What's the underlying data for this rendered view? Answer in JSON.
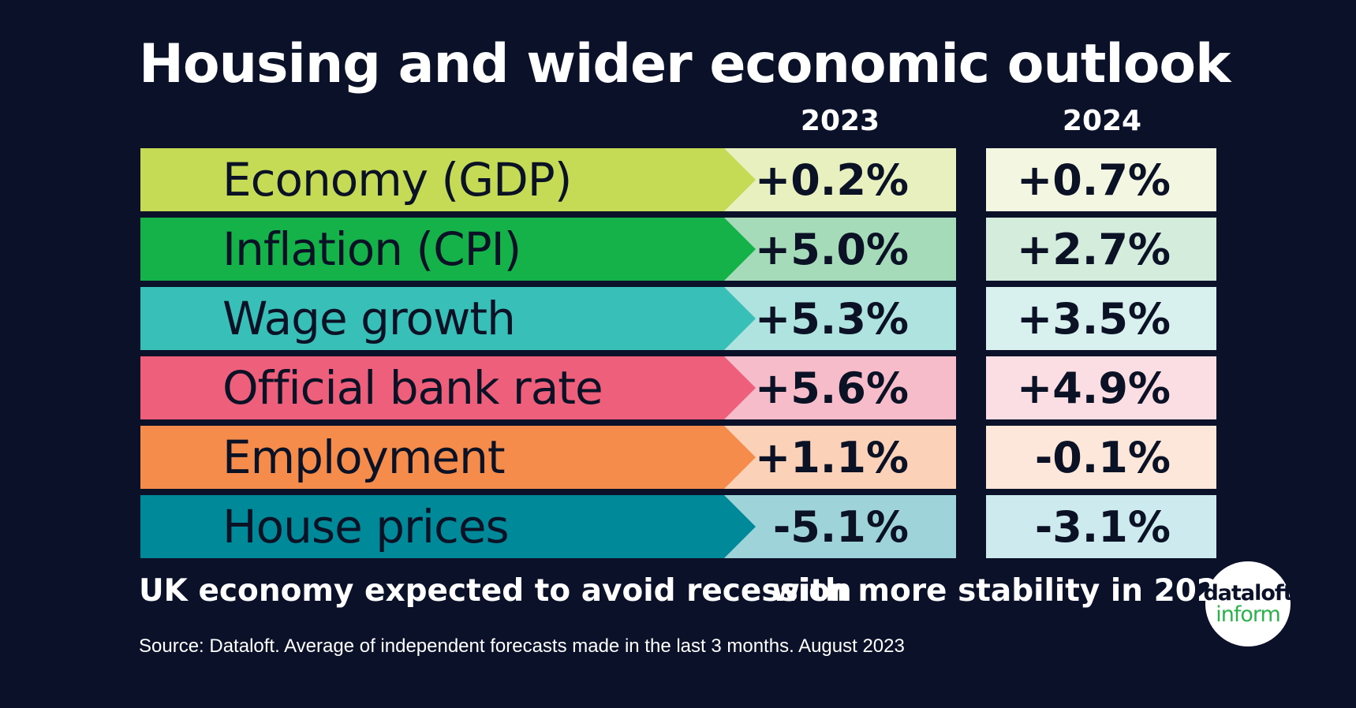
{
  "title": "Housing and wider economic outlook",
  "subtitle_left": "UK economy expected to avoid recession",
  "subtitle_right": "with more stability in 2024",
  "source": "Source: Dataloft. Average of independent forecasts made in the last 3 months. August 2023",
  "logo": {
    "line1": "dataloft",
    "line2": "inform"
  },
  "chart_data": {
    "type": "table",
    "columns": [
      "2023",
      "2024"
    ],
    "rows": [
      {
        "label": "Economy (GDP)",
        "values": [
          "+0.2%",
          "+0.7%"
        ],
        "color": "#c5db55",
        "cell23": "#e8f0c0",
        "cell24": "#f3f6e1"
      },
      {
        "label": "Inflation (CPI)",
        "values": [
          "+5.0%",
          "+2.7%"
        ],
        "color": "#15b24a",
        "cell23": "#a5dbb9",
        "cell24": "#d3ecdc"
      },
      {
        "label": "Wage growth",
        "values": [
          "+5.3%",
          "+3.5%"
        ],
        "color": "#38c0b8",
        "cell23": "#afe3e0",
        "cell24": "#d8f1ef"
      },
      {
        "label": "Official bank rate",
        "values": [
          "+5.6%",
          "+4.9%"
        ],
        "color": "#ee5f7b",
        "cell23": "#f7bcc9",
        "cell24": "#fbdde4"
      },
      {
        "label": "Employment",
        "values": [
          "+1.1%",
          "-0.1%"
        ],
        "color": "#f58c4b",
        "cell23": "#fbd1b8",
        "cell24": "#fce7da"
      },
      {
        "label": "House prices",
        "values": [
          "-5.1%",
          "-3.1%"
        ],
        "color": "#008a99",
        "cell23": "#9fd3da",
        "cell24": "#cdebee"
      }
    ]
  }
}
